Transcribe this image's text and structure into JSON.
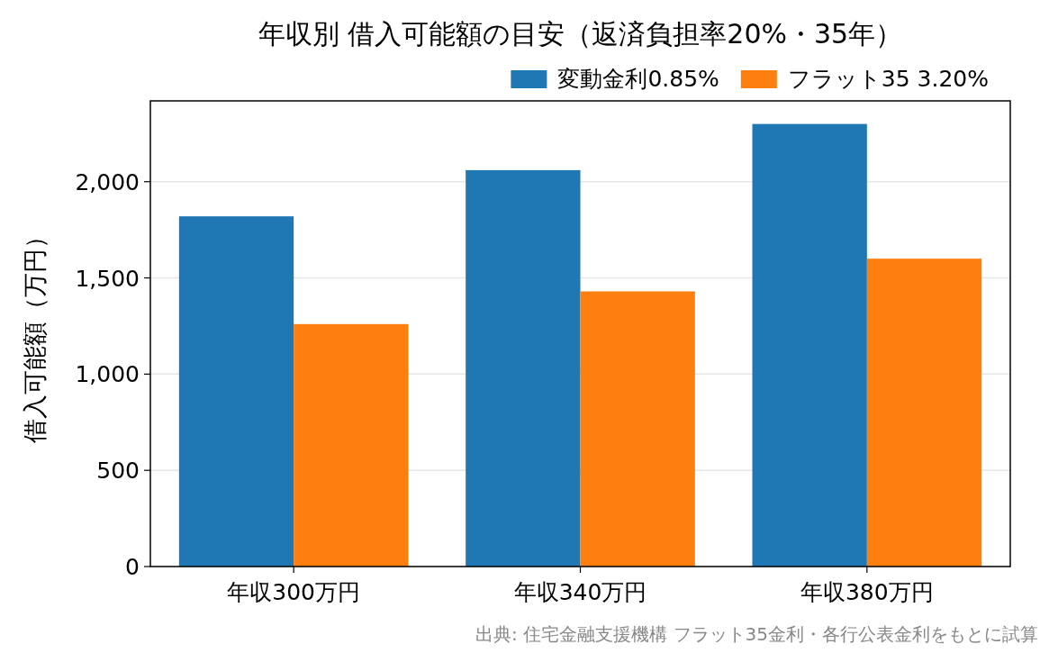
{
  "chart_data": {
    "type": "bar",
    "title": "年収別 借入可能額の目安（返済負担率20%・35年）",
    "ylabel": "借入可能額（万円）",
    "categories": [
      "年収300万円",
      "年収340万円",
      "年収380万円"
    ],
    "series": [
      {
        "name": "変動金利0.85%",
        "color": "#1f77b4",
        "values": [
          1820,
          2060,
          2300
        ]
      },
      {
        "name": "フラット35 3.20%",
        "color": "#ff7f0e",
        "values": [
          1260,
          1430,
          1600
        ]
      }
    ],
    "ylim": [
      0,
      2420
    ],
    "yticks": [
      0,
      500,
      {
        "value": 1000,
        "label": "1,000"
      },
      {
        "value": 1500,
        "label": "1,500"
      },
      {
        "value": 2000,
        "label": "2,000"
      }
    ],
    "grid": "y",
    "legend": "top right",
    "annotations": [
      "出典: 住宅金融支援機構 フラット35金利・各行公表金利をもとに試算"
    ]
  }
}
